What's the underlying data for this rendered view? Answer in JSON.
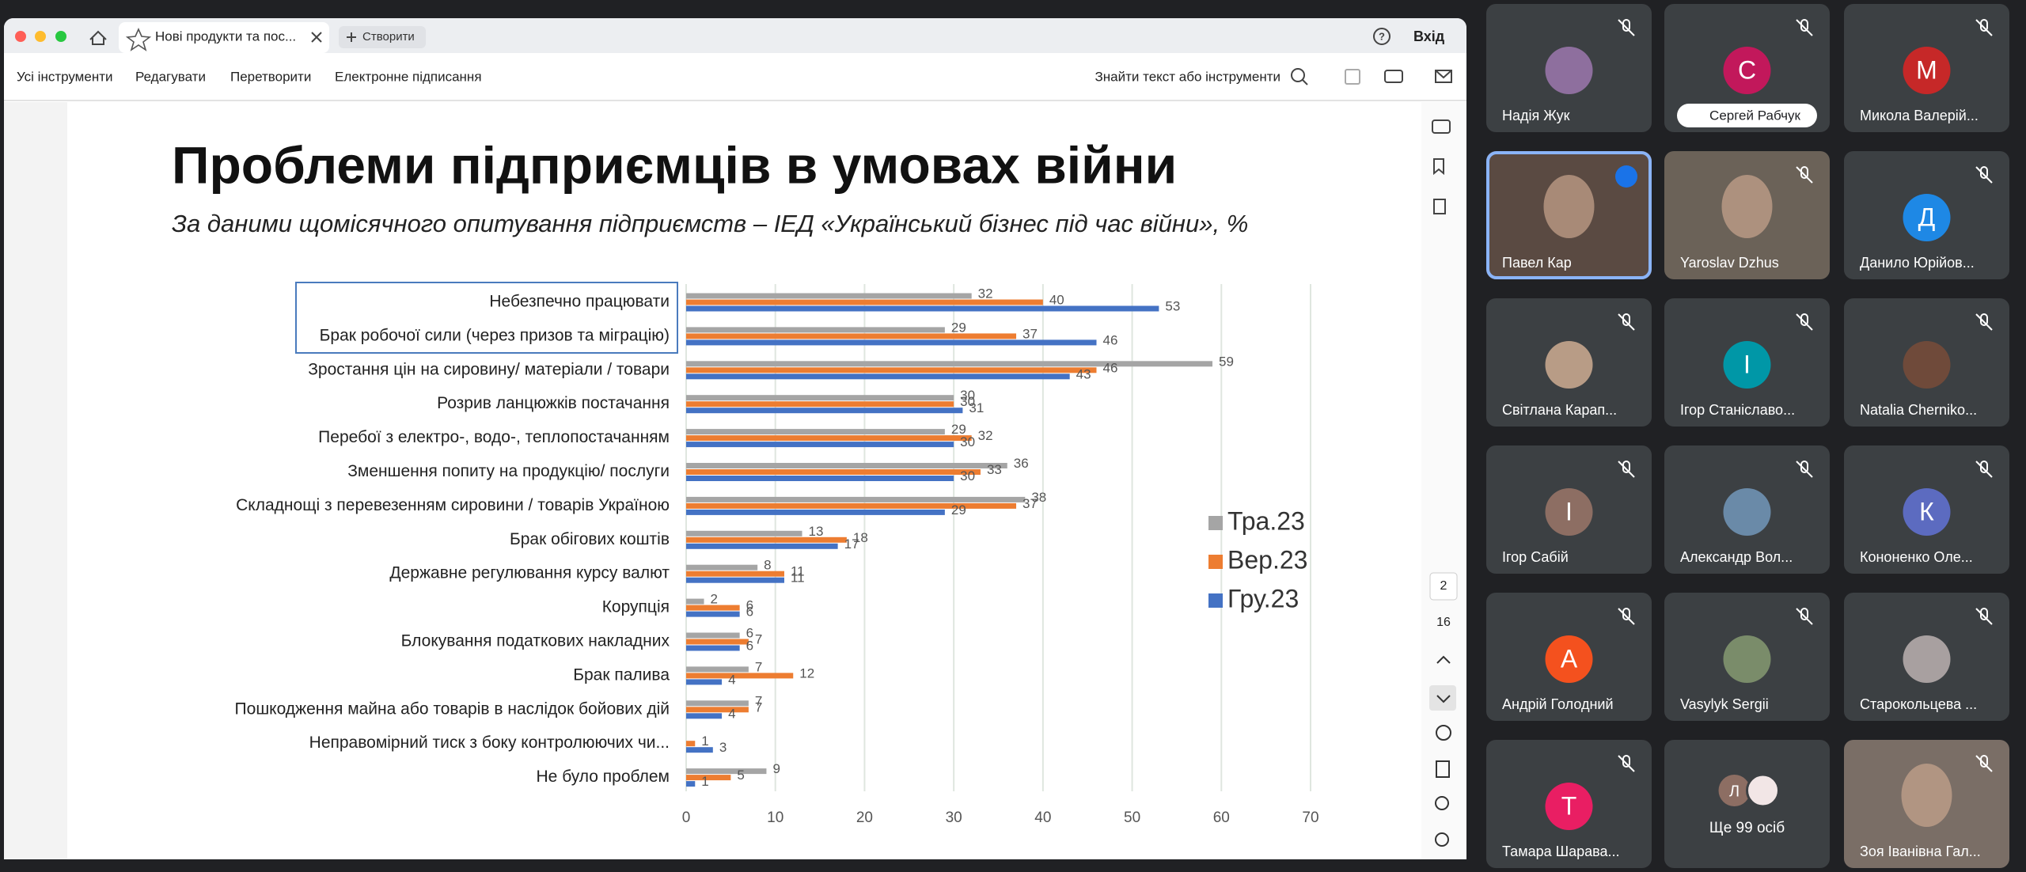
{
  "browser": {
    "tab_title": "Нові продукти та пос...",
    "new_tab": "Створити",
    "sign_in": "Вхід"
  },
  "toolbar": {
    "menu": [
      "Усі інструменти",
      "Редагувати",
      "Перетворити",
      "Електронне підписання"
    ],
    "search": "Знайти текст або інструменти"
  },
  "pager": {
    "current": 2,
    "total": 16
  },
  "chart_data": {
    "type": "bar",
    "orientation": "horizontal",
    "title": "Проблеми підприємців в умовах війни",
    "subtitle": "За даними щомісячного опитування підприємств – ІЕД «Український бізнес під час війни», %",
    "categories": [
      "Небезпечно працювати",
      "Брак робочої сили (через призов та міграцію)",
      "Зростання цін на сировину/ матеріали / товари",
      "Розрив ланцюжків постачання",
      "Перебої з електро-, водо-, теплопостачанням",
      "Зменшення попиту на продукцію/ послуги",
      "Складнощі з перевезенням сировини / товарів Україною",
      "Брак обігових коштів",
      "Державне регулювання курсу валют",
      "Корупція",
      "Блокування податкових накладних",
      "Брак палива",
      "Пошкодження майна або товарів в наслідок бойових дій",
      "Неправомірний тиск з боку контролюючих чи...",
      "Не було проблем"
    ],
    "series": [
      {
        "name": "Тра.23",
        "color": "#a5a5a5",
        "values": [
          32,
          29,
          59,
          30,
          29,
          36,
          38,
          13,
          8,
          2,
          6,
          7,
          7,
          null,
          9
        ]
      },
      {
        "name": "Вер.23",
        "color": "#ed7d31",
        "values": [
          40,
          37,
          46,
          30,
          32,
          33,
          37,
          18,
          11,
          6,
          7,
          12,
          7,
          1,
          5
        ]
      },
      {
        "name": "Гру.23",
        "color": "#4472c4",
        "values": [
          53,
          46,
          43,
          31,
          30,
          30,
          29,
          17,
          11,
          6,
          6,
          4,
          4,
          3,
          1
        ]
      }
    ],
    "xlim": [
      0,
      70
    ],
    "xticks": [
      0,
      10,
      20,
      30,
      40,
      50,
      60,
      70
    ],
    "grid": true,
    "legend": "right"
  },
  "participants": [
    {
      "name": "Надія Жук"
    },
    {
      "name": "Сергей Рабчук",
      "initial": "С",
      "color": "#c2185b"
    },
    {
      "name": "Микола Валерій...",
      "initial": "М",
      "color": "#c62828"
    },
    {
      "name": "Павел Кар"
    },
    {
      "name": "Yaroslav Dzhus"
    },
    {
      "name": "Данило Юрійов...",
      "initial": "Д",
      "color": "#1e88e5"
    },
    {
      "name": "Світлана Карап..."
    },
    {
      "name": "Ігор Станіславо...",
      "initial": "І",
      "color": "#0097a7"
    },
    {
      "name": "Natalia Cherniko..."
    },
    {
      "name": "Ігор Сабій",
      "initial": "І",
      "color": "#8d6e63"
    },
    {
      "name": "Александр Вол..."
    },
    {
      "name": "Кононенко Оле...",
      "initial": "К",
      "color": "#5c6bc0"
    },
    {
      "name": "Андрій Голодний",
      "initial": "А",
      "color": "#f4511e"
    },
    {
      "name": "Vasylyk Sergii"
    },
    {
      "name": "Старокольцева ..."
    },
    {
      "name": "Тамара Шарава...",
      "initial": "Т",
      "color": "#e91e63"
    },
    {
      "name": "Зоя Іванівна Гал..."
    }
  ],
  "more": {
    "initial": "Л",
    "label": "Ще 99 осіб"
  }
}
